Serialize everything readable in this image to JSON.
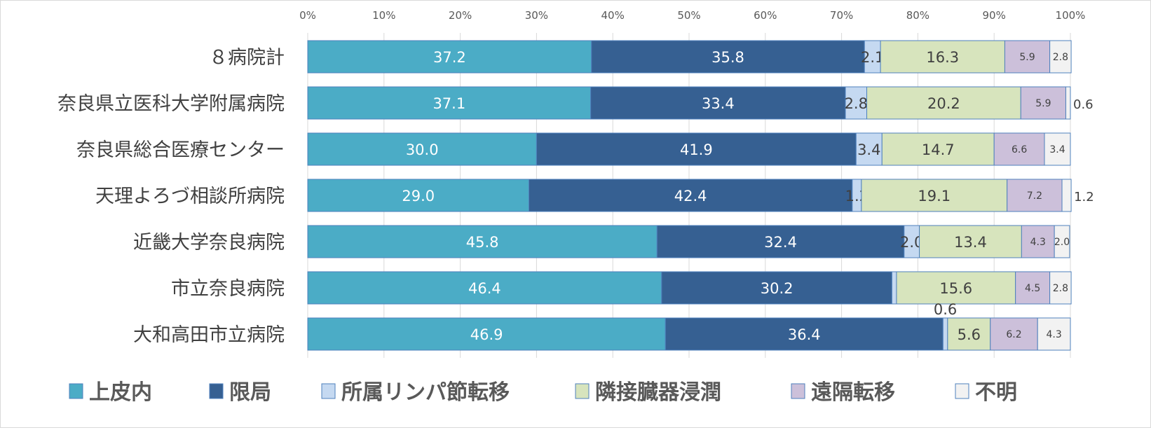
{
  "chart_data": {
    "type": "bar",
    "orientation": "horizontal",
    "stacked": "percent",
    "categories": [
      "８病院計",
      "奈良県立医科大学附属病院",
      "奈良県総合医療センター",
      "天理よろづ相談所病院",
      "近畿大学奈良病院",
      "市立奈良病院",
      "大和高田市立病院"
    ],
    "series": [
      {
        "name": "上皮内",
        "color": "#4BACC6",
        "values": [
          37.2,
          37.1,
          30.0,
          29.0,
          45.8,
          46.4,
          46.9
        ]
      },
      {
        "name": "限局",
        "color": "#366092",
        "values": [
          35.8,
          33.4,
          41.9,
          42.4,
          32.4,
          30.2,
          36.4
        ]
      },
      {
        "name": "所属リンパ節転移",
        "color": "#C5D9F1",
        "values": [
          2.1,
          2.8,
          3.4,
          1.2,
          2.0,
          0.6,
          0.6
        ]
      },
      {
        "name": "隣接臓器浸潤",
        "color": "#D7E4BD",
        "values": [
          16.3,
          20.2,
          14.7,
          19.1,
          13.4,
          15.6,
          5.6
        ]
      },
      {
        "name": "遠隔転移",
        "color": "#CCC0DA",
        "values": [
          5.9,
          5.9,
          6.6,
          7.2,
          4.3,
          4.5,
          6.2
        ]
      },
      {
        "name": "不明",
        "color": "#F2F2F2",
        "values": [
          2.8,
          0.6,
          3.4,
          1.2,
          2.0,
          2.8,
          4.3
        ]
      }
    ],
    "xticks": [
      "0%",
      "10%",
      "20%",
      "30%",
      "40%",
      "50%",
      "60%",
      "70%",
      "80%",
      "90%",
      "100%"
    ],
    "xlim": [
      0,
      100
    ],
    "xaxis_position": "top",
    "grid": true,
    "legend": "bottom",
    "title": "",
    "xlabel": "",
    "ylabel": ""
  }
}
